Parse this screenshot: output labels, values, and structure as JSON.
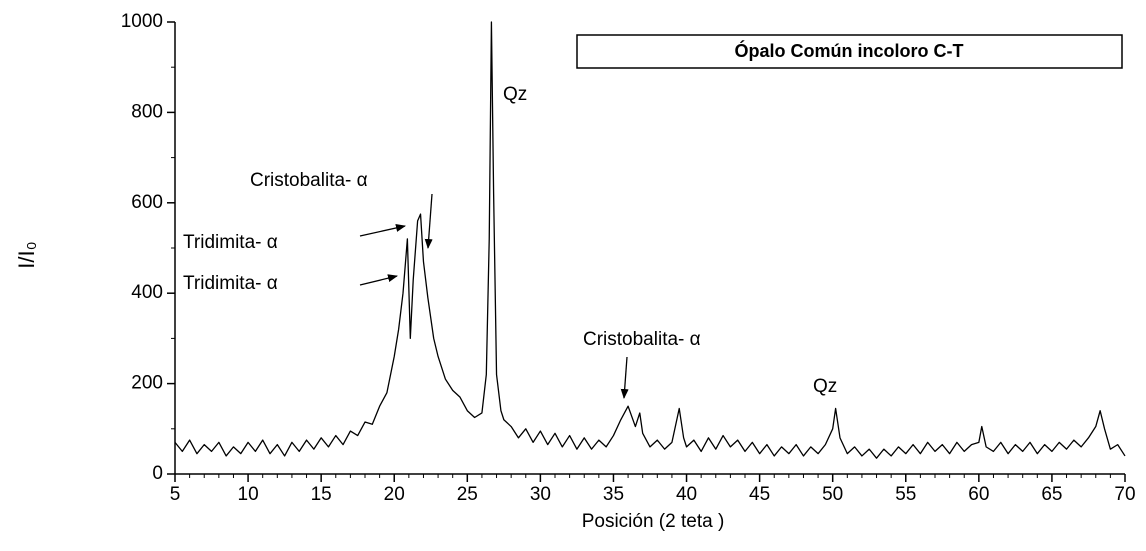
{
  "chart_data": {
    "type": "line",
    "title": "Ópalo Común incoloro C-T",
    "x_label": "Posición (2 teta )",
    "y_label": "I/I₀",
    "xlim": [
      5,
      70
    ],
    "ylim": [
      0,
      1000
    ],
    "xticks": [
      5,
      10,
      15,
      20,
      25,
      30,
      35,
      40,
      45,
      50,
      55,
      60,
      65,
      70
    ],
    "yticks": [
      0,
      200,
      400,
      600,
      800,
      1000
    ],
    "color": "#000000",
    "x": [
      5,
      5.5,
      6,
      6.5,
      7,
      7.5,
      8,
      8.5,
      9,
      9.5,
      10,
      10.5,
      11,
      11.5,
      12,
      12.5,
      13,
      13.5,
      14,
      14.5,
      15,
      15.5,
      16,
      16.5,
      17,
      17.5,
      18,
      18.5,
      19,
      19.5,
      20,
      20.3,
      20.6,
      20.9,
      21.1,
      21.3,
      21.6,
      21.8,
      22,
      22.3,
      22.7,
      23,
      23.5,
      24,
      24.5,
      25,
      25.5,
      26,
      26.3,
      26.5,
      26.65,
      26.8,
      27,
      27.3,
      27.5,
      28,
      28.5,
      29,
      29.5,
      30,
      30.5,
      31,
      31.5,
      32,
      32.5,
      33,
      33.5,
      34,
      34.5,
      35,
      35.5,
      36,
      36.5,
      36.8,
      37,
      37.5,
      38,
      38.5,
      39,
      39.5,
      39.8,
      40,
      40.5,
      41,
      41.5,
      42,
      42.5,
      43,
      43.5,
      44,
      44.5,
      45,
      45.5,
      46,
      46.5,
      47,
      47.5,
      48,
      48.5,
      49,
      49.5,
      50,
      50.2,
      50.5,
      51,
      51.5,
      52,
      52.5,
      53,
      53.5,
      54,
      54.5,
      55,
      55.5,
      56,
      56.5,
      57,
      57.5,
      58,
      58.5,
      59,
      59.5,
      60,
      60.2,
      60.5,
      61,
      61.5,
      62,
      62.5,
      63,
      63.5,
      64,
      64.5,
      65,
      65.5,
      66,
      66.5,
      67,
      67.5,
      68,
      68.3,
      68.6,
      69,
      69.5,
      70
    ],
    "values": [
      70,
      50,
      75,
      45,
      65,
      50,
      70,
      40,
      60,
      45,
      70,
      50,
      75,
      45,
      65,
      40,
      70,
      50,
      75,
      55,
      80,
      60,
      85,
      65,
      95,
      85,
      115,
      110,
      150,
      180,
      260,
      320,
      400,
      520,
      300,
      430,
      560,
      575,
      470,
      390,
      300,
      260,
      210,
      185,
      170,
      140,
      125,
      135,
      220,
      520,
      1000,
      620,
      220,
      140,
      120,
      105,
      80,
      100,
      70,
      95,
      65,
      90,
      60,
      85,
      55,
      80,
      55,
      75,
      60,
      85,
      120,
      150,
      105,
      135,
      90,
      60,
      75,
      55,
      70,
      145,
      80,
      60,
      75,
      50,
      80,
      55,
      85,
      60,
      75,
      50,
      70,
      45,
      65,
      40,
      60,
      45,
      65,
      40,
      60,
      45,
      65,
      100,
      145,
      80,
      45,
      60,
      40,
      55,
      35,
      55,
      40,
      60,
      45,
      65,
      45,
      70,
      50,
      65,
      45,
      70,
      50,
      65,
      70,
      105,
      60,
      50,
      70,
      45,
      65,
      50,
      70,
      45,
      65,
      50,
      70,
      55,
      75,
      60,
      80,
      105,
      140,
      100,
      55,
      65,
      40
    ],
    "annotations": [
      "Cristobalita- α",
      "Tridimita-  α",
      "Tridimita-  α",
      "Qz",
      "Cristobalita- α",
      "Qz"
    ]
  }
}
